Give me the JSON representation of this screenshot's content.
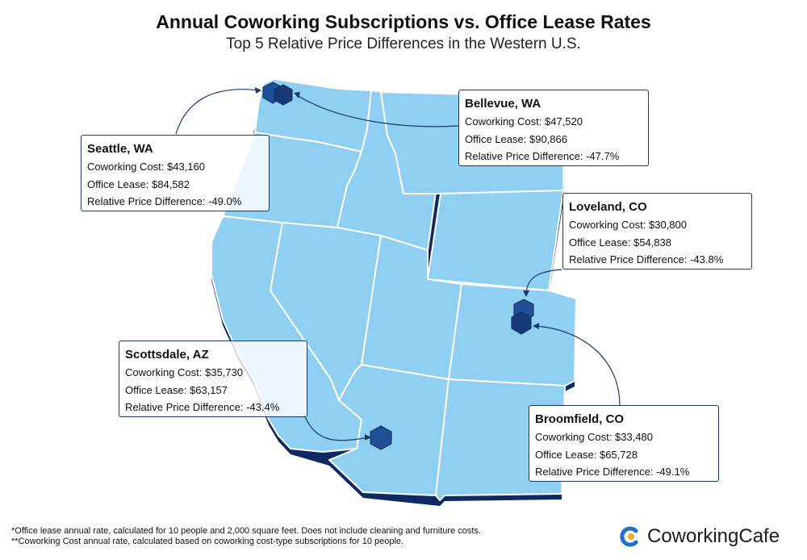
{
  "header": {
    "title": "Annual Coworking Subscriptions vs. Office Lease Rates",
    "subtitle": "Top 5 Relative Price Differences in the Western U.S."
  },
  "colors": {
    "state_fill": "#8ecff2",
    "state_border": "#ffffff",
    "shadow": "#0f2a63",
    "marker": "#1f4f95",
    "marker_dark": "#153a74",
    "card_border": "#1a3a6b"
  },
  "cities": [
    {
      "id": "seattle",
      "name": "Seattle, WA",
      "coworking_label": "Coworking Cost:",
      "coworking": "$43,160",
      "lease_label": "Office Lease:",
      "lease": "$84,582",
      "diff_label": "Relative Price Difference:",
      "diff": "-49.0%"
    },
    {
      "id": "bellevue",
      "name": "Bellevue, WA",
      "coworking_label": "Coworking Cost:",
      "coworking": "$47,520",
      "lease_label": "Office Lease:",
      "lease": "$90,866",
      "diff_label": "Relative Price Difference:",
      "diff": "-47.7%"
    },
    {
      "id": "loveland",
      "name": "Loveland, CO",
      "coworking_label": "Coworking Cost:",
      "coworking": "$30,800",
      "lease_label": "Office Lease:",
      "lease": "$54,838",
      "diff_label": "Relative Price Difference:",
      "diff": "-43.8%"
    },
    {
      "id": "scottsdale",
      "name": "Scottsdale, AZ",
      "coworking_label": "Coworking Cost:",
      "coworking": "$35,730",
      "lease_label": "Office Lease:",
      "lease": "$63,157",
      "diff_label": "Relative Price Difference:",
      "diff": "-43.4%"
    },
    {
      "id": "broomfield",
      "name": "Broomfield, CO",
      "coworking_label": "Coworking Cost:",
      "coworking": "$33,480",
      "lease_label": "Office Lease:",
      "lease": "$65,728",
      "diff_label": "Relative Price Difference:",
      "diff": "-49.1%"
    }
  ],
  "footnotes": {
    "line1": "*Office lease annual rate, calculated for 10 people and 2,000 square feet. Does not include cleaning and furniture costs.",
    "line2": "**Coworking Cost annual rate, calculated based on coworking cost-type subscriptions for 10 people."
  },
  "brand": {
    "name": "CoworkingCafe",
    "icon": "coworkingcafe-logo-icon",
    "accent": "#f5a623",
    "blue": "#1f6fd1"
  }
}
